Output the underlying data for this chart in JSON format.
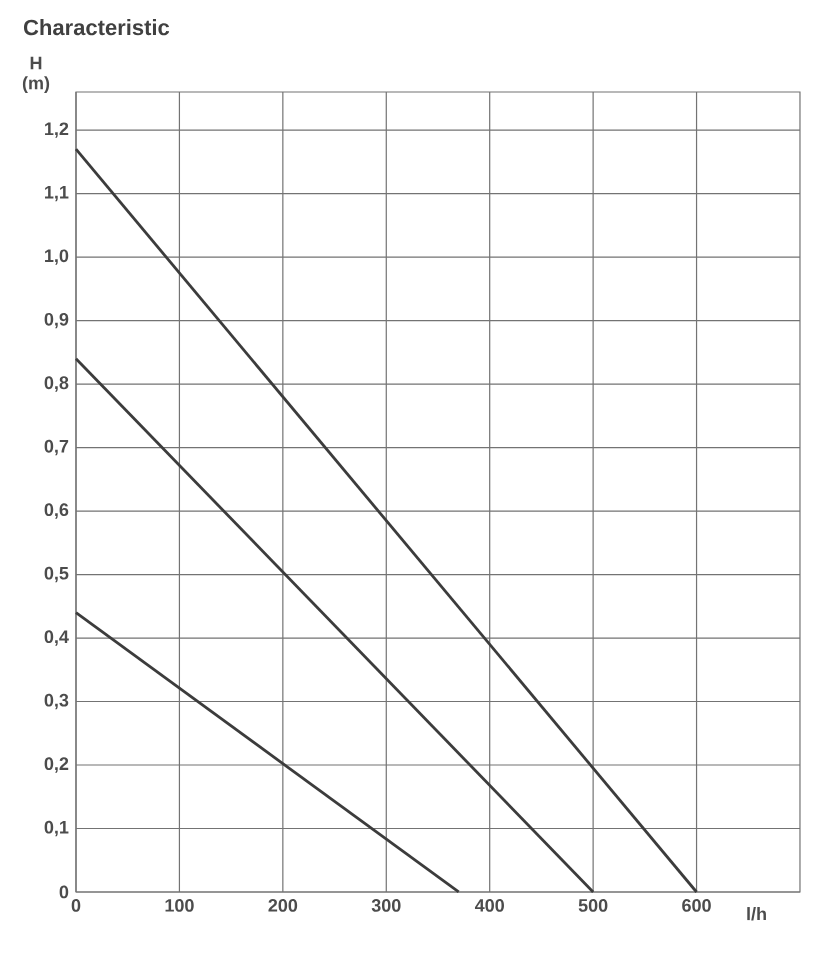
{
  "chart_data": {
    "type": "line",
    "title": "Characteristic",
    "xlabel": "l/h",
    "ylabel": "H (m)",
    "series": [
      {
        "color": "#3c3c3c",
        "x": [
          0,
          600
        ],
        "values": [
          1.17,
          0
        ]
      },
      {
        "color": "#3c3c3c",
        "x": [
          0,
          500
        ],
        "values": [
          0.84,
          0
        ]
      },
      {
        "color": "#3c3c3c",
        "x": [
          0,
          370
        ],
        "values": [
          0.44,
          0
        ]
      }
    ],
    "xlim": [
      0,
      700
    ],
    "ylim": [
      0,
      1.26
    ],
    "xticks": [
      0,
      100,
      200,
      300,
      400,
      500,
      600
    ],
    "yticks": [
      0,
      {
        "value": 0.1,
        "label": "0,1"
      },
      {
        "value": 0.2,
        "label": "0,2"
      },
      {
        "value": 0.3,
        "label": "0,3"
      },
      {
        "value": 0.4,
        "label": "0,4"
      },
      {
        "value": 0.5,
        "label": "0,5"
      },
      {
        "value": 0.6,
        "label": "0,6"
      },
      {
        "value": 0.7,
        "label": "0,7"
      },
      {
        "value": 0.8,
        "label": "0,8"
      },
      {
        "value": 0.9,
        "label": "0,9"
      },
      {
        "value": 1.0,
        "label": "1,0"
      },
      {
        "value": 1.1,
        "label": "1,1"
      },
      {
        "value": 1.2,
        "label": "1,2"
      }
    ],
    "grid": true,
    "marker": "none",
    "line_style": "solid"
  }
}
